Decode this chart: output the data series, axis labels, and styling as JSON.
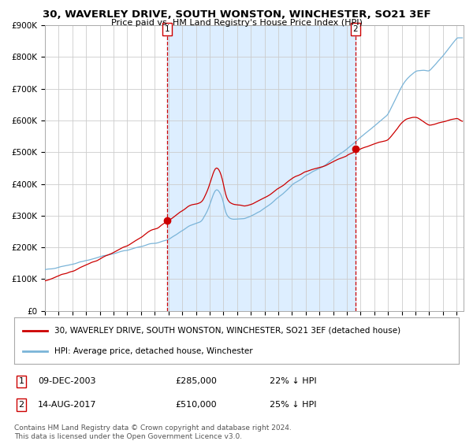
{
  "title": "30, WAVERLEY DRIVE, SOUTH WONSTON, WINCHESTER, SO21 3EF",
  "subtitle": "Price paid vs. HM Land Registry's House Price Index (HPI)",
  "legend_line1": "30, WAVERLEY DRIVE, SOUTH WONSTON, WINCHESTER, SO21 3EF (detached house)",
  "legend_line2": "HPI: Average price, detached house, Winchester",
  "marker1_date": "09-DEC-2003",
  "marker1_price": 285000,
  "marker1_label": "22% ↓ HPI",
  "marker1_year": 2003.92,
  "marker2_date": "14-AUG-2017",
  "marker2_price": 510000,
  "marker2_label": "25% ↓ HPI",
  "marker2_year": 2017.62,
  "footnote1": "Contains HM Land Registry data © Crown copyright and database right 2024.",
  "footnote2": "This data is licensed under the Open Government Licence v3.0.",
  "ylim": [
    0,
    900000
  ],
  "xlim_start": 1995.0,
  "xlim_end": 2025.5,
  "hpi_color": "#7ab4d8",
  "price_color": "#cc0000",
  "shade_color": "#ddeeff",
  "vline_color": "#cc0000",
  "grid_color": "#cccccc",
  "background_color": "#ffffff"
}
